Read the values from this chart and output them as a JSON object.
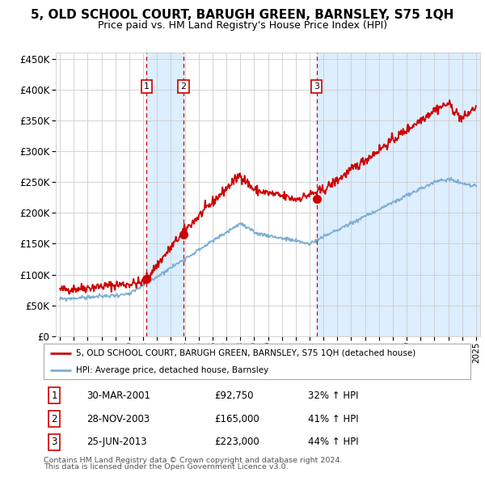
{
  "title": "5, OLD SCHOOL COURT, BARUGH GREEN, BARNSLEY, S75 1QH",
  "subtitle": "Price paid vs. HM Land Registry's House Price Index (HPI)",
  "legend_line1": "5, OLD SCHOOL COURT, BARUGH GREEN, BARNSLEY, S75 1QH (detached house)",
  "legend_line2": "HPI: Average price, detached house, Barnsley",
  "footer1": "Contains HM Land Registry data © Crown copyright and database right 2024.",
  "footer2": "This data is licensed under the Open Government Licence v3.0.",
  "red_color": "#cc0000",
  "blue_color": "#7bafd4",
  "sale_points": [
    {
      "label": "1",
      "date": 2001.25,
      "price": 92750
    },
    {
      "label": "2",
      "date": 2003.9,
      "price": 165000
    },
    {
      "label": "3",
      "date": 2013.5,
      "price": 223000
    }
  ],
  "sale_annotations": [
    {
      "num": "1",
      "date": "30-MAR-2001",
      "price": "£92,750",
      "pct": "32% ↑ HPI"
    },
    {
      "num": "2",
      "date": "28-NOV-2003",
      "price": "£165,000",
      "pct": "41% ↑ HPI"
    },
    {
      "num": "3",
      "date": "25-JUN-2013",
      "price": "£223,000",
      "pct": "44% ↑ HPI"
    }
  ],
  "ylim": [
    0,
    460000
  ],
  "yticks": [
    0,
    50000,
    100000,
    150000,
    200000,
    250000,
    300000,
    350000,
    400000,
    450000
  ],
  "ytick_labels": [
    "£0",
    "£50K",
    "£100K",
    "£150K",
    "£200K",
    "£250K",
    "£300K",
    "£350K",
    "£400K",
    "£450K"
  ],
  "xstart": 1994.7,
  "xend": 2025.3,
  "background_color": "#ffffff",
  "grid_color": "#cccccc",
  "shade_color": "#ddeeff"
}
